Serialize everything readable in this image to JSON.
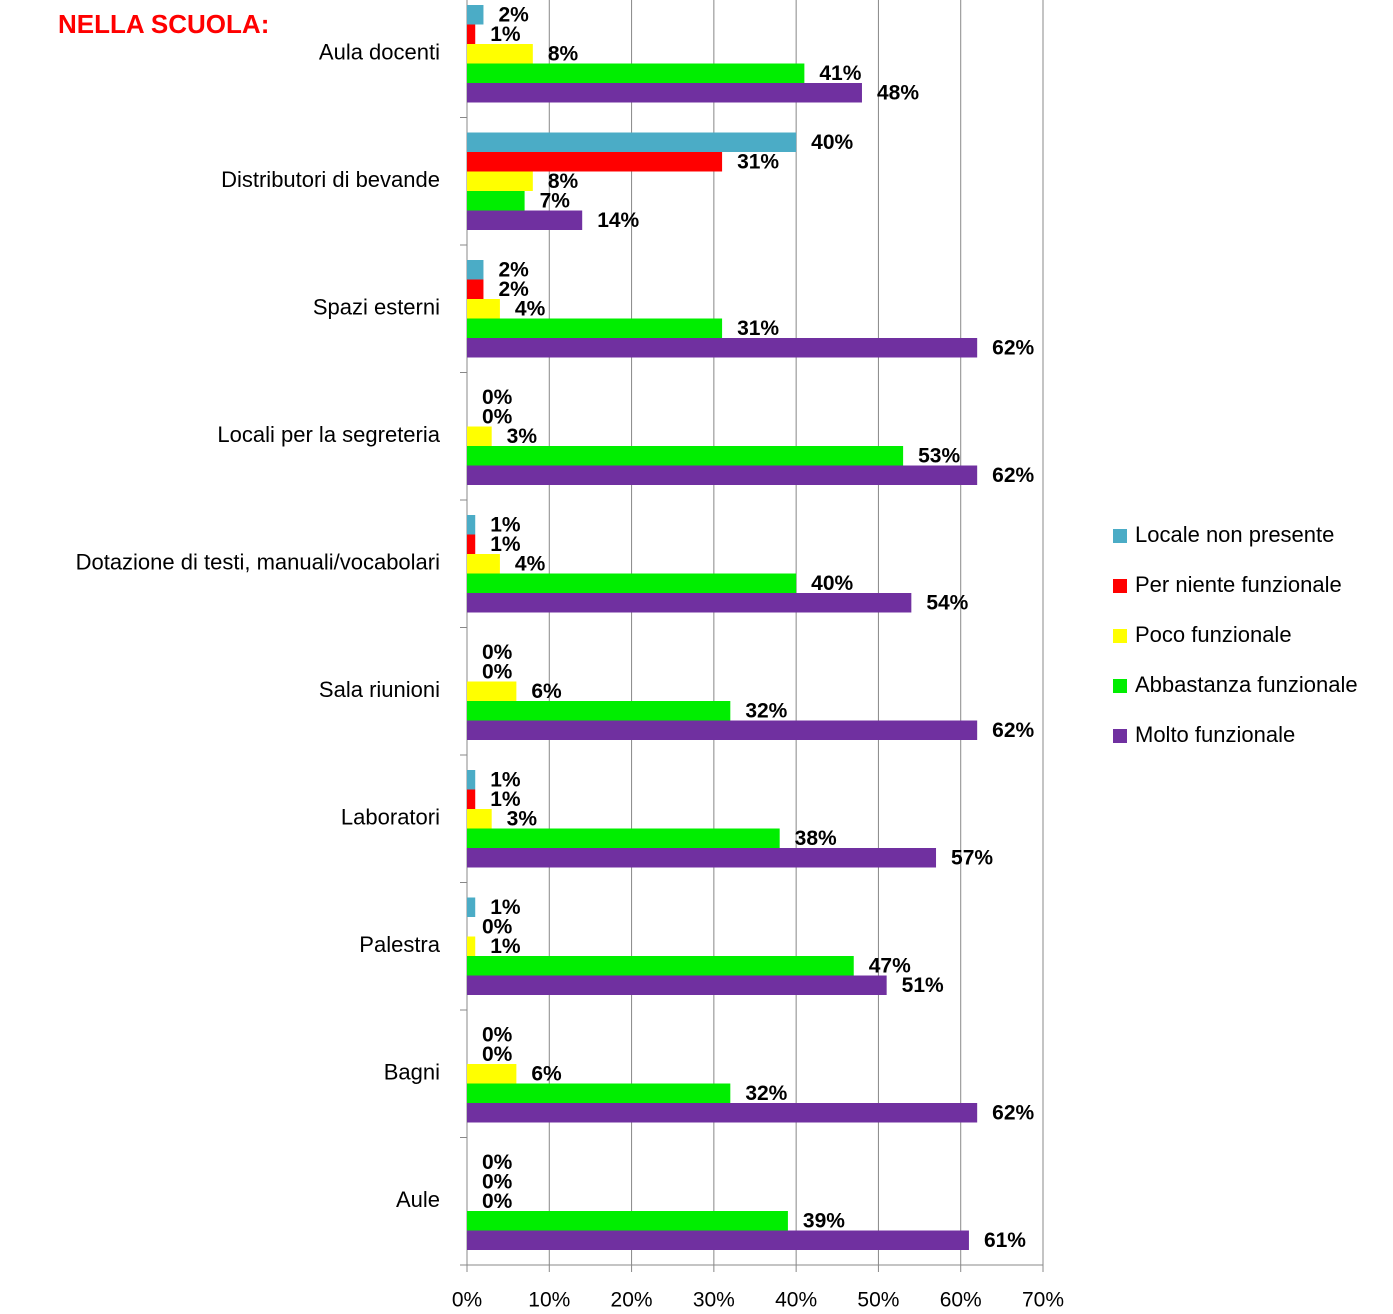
{
  "chart_data": {
    "type": "barh",
    "title": "NELLA SCUOLA:",
    "categories": [
      "Aula docenti",
      "Distributori di bevande",
      "Spazi esterni",
      "Locali per la segreteria",
      "Dotazione di testi, manuali/vocabolari",
      "Sala riunioni",
      "Laboratori",
      "Palestra",
      "Bagni",
      "Aule"
    ],
    "series": [
      {
        "name": "Locale non presente",
        "color": "#4bacc6",
        "values": [
          2,
          40,
          2,
          0,
          1,
          0,
          1,
          1,
          0,
          0
        ],
        "value_labels": [
          "2%",
          "40%",
          "2%",
          "0%",
          "1%",
          "0%",
          "1%",
          "1%",
          "0%",
          "0%"
        ]
      },
      {
        "name": "Per niente funzionale",
        "color": "#ff0000",
        "values": [
          1,
          31,
          2,
          0,
          1,
          0,
          1,
          0,
          0,
          0
        ],
        "value_labels": [
          "1%",
          "31%",
          "2%",
          "0%",
          "1%",
          "0%",
          "1%",
          "0%",
          "0%",
          "0%"
        ]
      },
      {
        "name": "Poco funzionale",
        "color": "#ffff00",
        "values": [
          8,
          8,
          4,
          3,
          4,
          6,
          3,
          1,
          6,
          0
        ],
        "value_labels": [
          "8%",
          "8%",
          "4%",
          "3%",
          "4%",
          "6%",
          "3%",
          "1%",
          "6%",
          "0%"
        ]
      },
      {
        "name": "Abbastanza funzionale",
        "color": "#00ee00",
        "values": [
          41,
          7,
          31,
          53,
          40,
          32,
          38,
          47,
          32,
          39
        ],
        "value_labels": [
          "41%",
          "7%",
          "31%",
          "53%",
          "40%",
          "32%",
          "38%",
          "47%",
          "32%",
          "39%"
        ]
      },
      {
        "name": "Molto funzionale",
        "color": "#7030a0",
        "values": [
          48,
          14,
          62,
          62,
          54,
          62,
          57,
          51,
          62,
          61
        ],
        "value_labels": [
          "48%",
          "14%",
          "62%",
          "62%",
          "54%",
          "62%",
          "57%",
          "51%",
          "62%",
          "61%"
        ]
      }
    ],
    "xlim": [
      0,
      70
    ],
    "xticks": [
      {
        "value": 0,
        "label": "0%"
      },
      {
        "value": 10,
        "label": "10%"
      },
      {
        "value": 20,
        "label": "20%"
      },
      {
        "value": 30,
        "label": "30%"
      },
      {
        "value": 40,
        "label": "40%"
      },
      {
        "value": 50,
        "label": "50%"
      },
      {
        "value": 60,
        "label": "60%"
      },
      {
        "value": 70,
        "label": "70%"
      }
    ],
    "grid": true,
    "legend": "right"
  }
}
